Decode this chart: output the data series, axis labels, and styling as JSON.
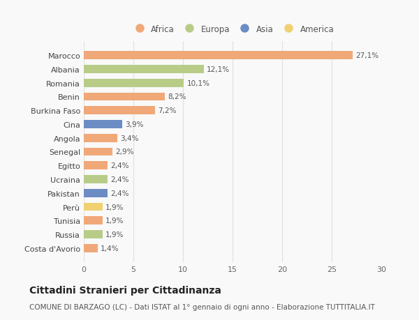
{
  "countries": [
    "Marocco",
    "Albania",
    "Romania",
    "Benin",
    "Burkina Faso",
    "Cina",
    "Angola",
    "Senegal",
    "Egitto",
    "Ucraina",
    "Pakistan",
    "Perù",
    "Tunisia",
    "Russia",
    "Costa d'Avorio"
  ],
  "values": [
    27.1,
    12.1,
    10.1,
    8.2,
    7.2,
    3.9,
    3.4,
    2.9,
    2.4,
    2.4,
    2.4,
    1.9,
    1.9,
    1.9,
    1.4
  ],
  "labels": [
    "27,1%",
    "12,1%",
    "10,1%",
    "8,2%",
    "7,2%",
    "3,9%",
    "3,4%",
    "2,9%",
    "2,4%",
    "2,4%",
    "2,4%",
    "1,9%",
    "1,9%",
    "1,9%",
    "1,4%"
  ],
  "continents": [
    "Africa",
    "Europa",
    "Europa",
    "Africa",
    "Africa",
    "Asia",
    "Africa",
    "Africa",
    "Africa",
    "Europa",
    "Asia",
    "America",
    "Africa",
    "Europa",
    "Africa"
  ],
  "continent_colors": {
    "Africa": "#F0A878",
    "Europa": "#B8CC88",
    "Asia": "#6B8DC4",
    "America": "#F0D070"
  },
  "legend_order": [
    "Africa",
    "Europa",
    "Asia",
    "America"
  ],
  "title": "Cittadini Stranieri per Cittadinanza",
  "subtitle": "COMUNE DI BARZAGO (LC) - Dati ISTAT al 1° gennaio di ogni anno - Elaborazione TUTTITALIA.IT",
  "xlim": [
    0,
    30
  ],
  "xticks": [
    0,
    5,
    10,
    15,
    20,
    25,
    30
  ],
  "background_color": "#f9f9f9",
  "bar_height": 0.6,
  "grid_color": "#e0e0e0",
  "title_fontsize": 10,
  "subtitle_fontsize": 7.5,
  "label_fontsize": 7.5,
  "tick_fontsize": 8,
  "legend_fontsize": 8.5
}
